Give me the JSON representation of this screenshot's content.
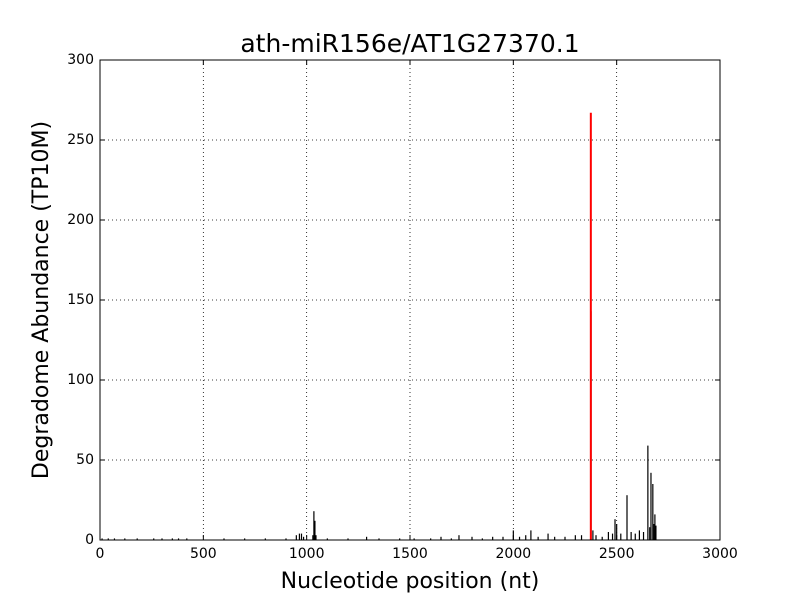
{
  "chart_data": {
    "type": "stem",
    "title": "ath-miR156e/AT1G27370.1",
    "xlabel": "Nucleotide position (nt)",
    "ylabel": "Degradome Abundance (TP10M)",
    "xlim": [
      0,
      3000
    ],
    "ylim": [
      0,
      300
    ],
    "xticks": [
      0,
      500,
      1000,
      1500,
      2000,
      2500,
      3000
    ],
    "yticks": [
      0,
      50,
      100,
      150,
      200,
      250,
      300
    ],
    "grid": true,
    "series": [
      {
        "color": "#000000",
        "x": [
          10,
          40,
          70,
          120,
          180,
          260,
          300,
          350,
          380,
          420,
          600,
          700,
          800,
          900,
          950,
          965,
          975,
          985,
          1030,
          1035,
          1040,
          1045,
          1100,
          1200,
          1290,
          1350,
          1450,
          1520,
          1600,
          1650,
          1700,
          1737,
          1800,
          1850,
          1900,
          1950,
          2000,
          2030,
          2060,
          2085,
          2120,
          2168,
          2200,
          2250,
          2300,
          2330,
          2376,
          2385,
          2400,
          2430,
          2460,
          2480,
          2492,
          2500,
          2520,
          2550,
          2570,
          2590,
          2610,
          2630,
          2651,
          2660,
          2666,
          2675,
          2680,
          2685,
          2690
        ],
        "values": [
          1,
          1,
          1,
          1,
          1,
          1,
          1,
          1,
          1,
          1,
          1,
          1,
          1,
          1,
          3,
          4,
          4,
          2,
          3,
          18,
          12,
          3,
          1,
          1,
          2,
          1,
          1,
          1,
          1,
          2,
          1,
          3,
          2,
          1,
          2,
          2,
          6,
          2,
          3,
          6,
          2,
          4,
          2,
          2,
          3,
          3,
          143,
          6,
          3,
          2,
          5,
          4,
          13,
          10,
          4,
          28,
          5,
          4,
          6,
          5,
          59,
          8,
          42,
          35,
          10,
          16,
          9
        ]
      },
      {
        "color": "#ff0000",
        "x": [
          2375
        ],
        "values": [
          267
        ]
      }
    ]
  }
}
